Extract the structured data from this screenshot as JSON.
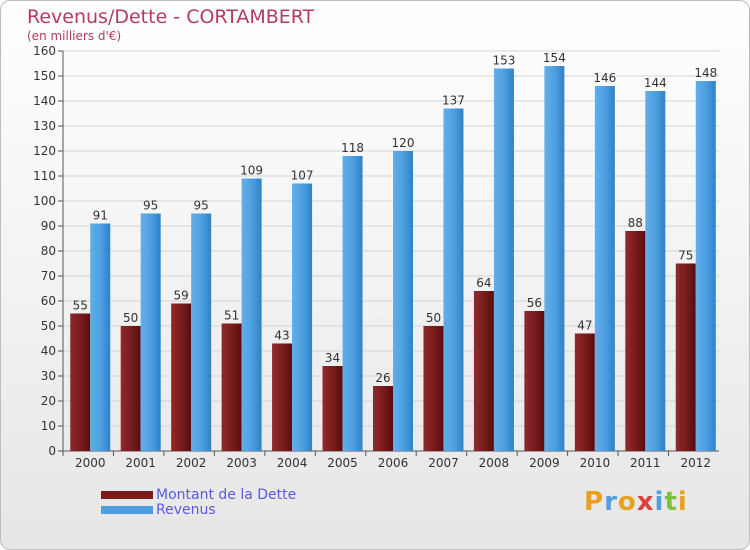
{
  "header": {
    "title": "Revenus/Dette - CORTAMBERT",
    "subtitle": "(en milliers d'€)"
  },
  "legend": {
    "items": [
      {
        "label": "Montant de la Dette",
        "color": "#7a1c1e"
      },
      {
        "label": "Revenus",
        "color": "#4f9fe0"
      }
    ]
  },
  "logo": {
    "letters": [
      "P",
      "r",
      "o",
      "x",
      "i",
      "t",
      "i"
    ],
    "colors": [
      "#e8a020",
      "#4fa0e0",
      "#e8a020",
      "#e04040",
      "#4fa0e0",
      "#80c040",
      "#e8a020"
    ]
  },
  "chart_data": {
    "type": "bar",
    "categories": [
      "2000",
      "2001",
      "2002",
      "2003",
      "2004",
      "2005",
      "2006",
      "2007",
      "2008",
      "2009",
      "2010",
      "2011",
      "2012"
    ],
    "series": [
      {
        "name": "Montant de la Dette",
        "color": "#7a1c1e",
        "values": [
          55,
          50,
          59,
          51,
          43,
          34,
          26,
          50,
          64,
          56,
          47,
          88,
          75
        ]
      },
      {
        "name": "Revenus",
        "color": "#4f9fe0",
        "values": [
          91,
          95,
          95,
          109,
          107,
          118,
          120,
          137,
          153,
          154,
          146,
          144,
          148
        ]
      }
    ],
    "ylim": [
      0,
      160
    ],
    "ytick_step": 10,
    "grid": true,
    "legend_position": "bottom-left"
  }
}
